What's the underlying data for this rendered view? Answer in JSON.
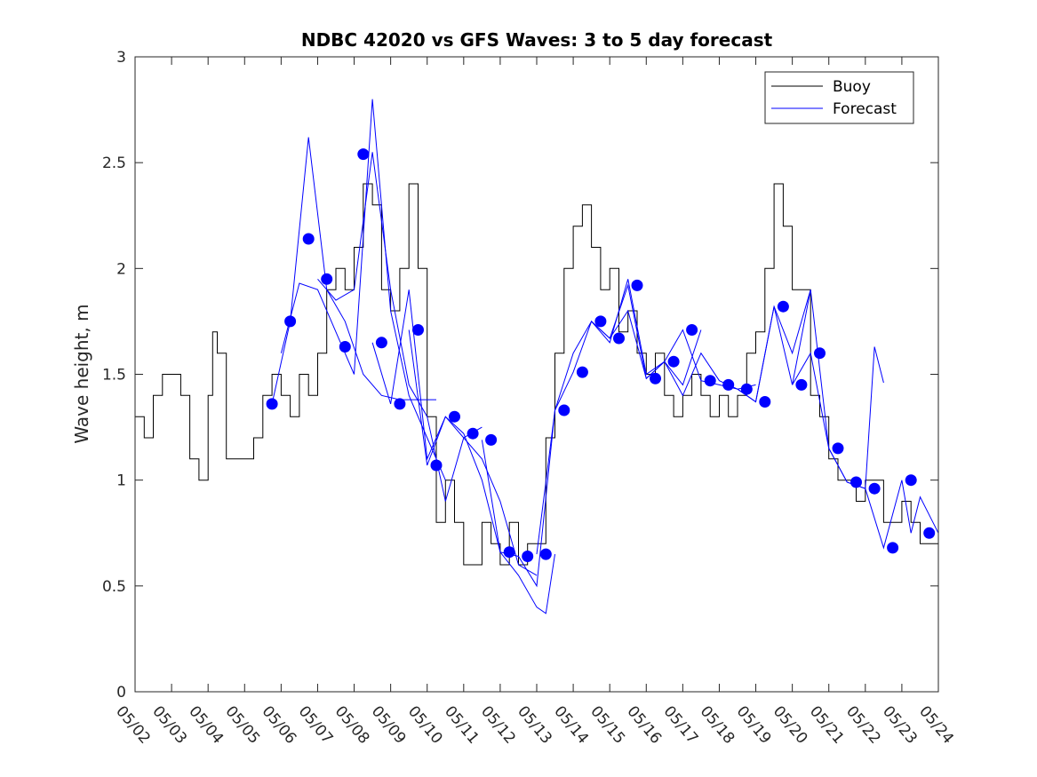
{
  "chart_data": {
    "type": "line",
    "title": "NDBC 42020 vs GFS Waves: 3 to 5 day forecast",
    "xlabel": "",
    "ylabel": "Wave height, m",
    "x_ticks": [
      "05/02",
      "05/03",
      "05/04",
      "05/05",
      "05/06",
      "05/07",
      "05/08",
      "05/09",
      "05/10",
      "05/11",
      "05/12",
      "05/13",
      "05/14",
      "05/15",
      "05/16",
      "05/17",
      "05/18",
      "05/19",
      "05/20",
      "05/21",
      "05/22",
      "05/23",
      "05/24"
    ],
    "xlim": [
      "05/02",
      "05/24"
    ],
    "ylim": [
      0,
      3
    ],
    "y_ticks": [
      "0",
      "0.5",
      "1",
      "1.5",
      "2",
      "2.5",
      "3"
    ],
    "legend_position": "top-right",
    "grid": false,
    "colors": {
      "buoy": "#000000",
      "forecast": "#0000ff",
      "axes": "#262626"
    },
    "series": [
      {
        "name": "Buoy",
        "style": "line",
        "x": [
          "05/02 00:00",
          "05/02 06:00",
          "05/02 12:00",
          "05/02 18:00",
          "05/03 00:00",
          "05/03 06:00",
          "05/03 12:00",
          "05/03 18:00",
          "05/04 00:00",
          "05/04 03:00",
          "05/04 06:00",
          "05/04 12:00",
          "05/04 18:00",
          "05/05 00:00",
          "05/05 06:00",
          "05/05 12:00",
          "05/05 18:00",
          "05/06 00:00",
          "05/06 06:00",
          "05/06 12:00",
          "05/06 18:00",
          "05/07 00:00",
          "05/07 06:00",
          "05/07 12:00",
          "05/07 18:00",
          "05/08 00:00",
          "05/08 06:00",
          "05/08 12:00",
          "05/08 18:00",
          "05/09 00:00",
          "05/09 06:00",
          "05/09 12:00",
          "05/09 18:00",
          "05/10 00:00",
          "05/10 06:00",
          "05/10 12:00",
          "05/10 18:00",
          "05/11 00:00",
          "05/11 06:00",
          "05/11 12:00",
          "05/11 18:00",
          "05/12 00:00",
          "05/12 06:00",
          "05/12 12:00",
          "05/12 18:00",
          "05/13 00:00",
          "05/13 06:00",
          "05/13 12:00",
          "05/13 18:00",
          "05/14 00:00",
          "05/14 06:00",
          "05/14 12:00",
          "05/14 18:00",
          "05/15 00:00",
          "05/15 06:00",
          "05/15 12:00",
          "05/15 18:00",
          "05/16 00:00",
          "05/16 06:00",
          "05/16 12:00",
          "05/16 18:00",
          "05/17 00:00",
          "05/17 06:00",
          "05/17 12:00",
          "05/17 18:00",
          "05/18 00:00",
          "05/18 06:00",
          "05/18 12:00",
          "05/18 18:00",
          "05/19 00:00",
          "05/19 06:00",
          "05/19 12:00",
          "05/19 18:00",
          "05/20 00:00",
          "05/20 06:00",
          "05/20 12:00",
          "05/20 18:00",
          "05/21 00:00",
          "05/21 06:00",
          "05/21 12:00",
          "05/21 18:00",
          "05/22 00:00",
          "05/22 06:00",
          "05/22 12:00",
          "05/22 18:00",
          "05/23 00:00",
          "05/23 06:00",
          "05/23 12:00",
          "05/23 18:00",
          "05/24 00:00"
        ],
        "y": [
          1.3,
          1.2,
          1.4,
          1.5,
          1.5,
          1.4,
          1.1,
          1.0,
          1.4,
          1.7,
          1.6,
          1.1,
          1.1,
          1.1,
          1.2,
          1.4,
          1.5,
          1.4,
          1.3,
          1.5,
          1.4,
          1.6,
          1.9,
          2.0,
          1.9,
          2.1,
          2.4,
          2.3,
          1.9,
          1.8,
          2.0,
          2.4,
          2.0,
          1.3,
          0.8,
          1.0,
          0.8,
          0.6,
          0.6,
          0.8,
          0.7,
          0.6,
          0.8,
          0.6,
          0.7,
          0.7,
          1.2,
          1.6,
          2.0,
          2.2,
          2.3,
          2.1,
          1.9,
          2.0,
          1.7,
          1.8,
          1.6,
          1.5,
          1.6,
          1.4,
          1.3,
          1.4,
          1.5,
          1.4,
          1.3,
          1.4,
          1.3,
          1.4,
          1.6,
          1.7,
          2.0,
          2.4,
          2.2,
          1.9,
          1.9,
          1.4,
          1.3,
          1.1,
          1.0,
          1.0,
          0.9,
          1.0,
          1.0,
          0.8,
          0.8,
          0.9,
          0.8,
          0.7,
          0.7,
          0.7
        ]
      },
      {
        "name": "Forecast",
        "style": "line",
        "runs": [
          {
            "x": [
              "05/05 18:00",
              "05/06 06:00",
              "05/06 18:00",
              "05/07 06:00",
              "05/07 18:00",
              "05/08 06:00",
              "05/08 18:00",
              "05/09 06:00",
              "05/09 18:00",
              "05/10 06:00"
            ],
            "y": [
              1.36,
              1.75,
              2.62,
              1.9,
              1.75,
              1.5,
              1.4,
              1.38,
              1.38,
              1.38
            ]
          },
          {
            "x": [
              "05/06 00:00",
              "05/06 12:00",
              "05/07 00:00",
              "05/07 12:00",
              "05/08 00:00",
              "05/08 12:00",
              "05/09 00:00",
              "05/09 12:00",
              "05/10 00:00",
              "05/10 12:00"
            ],
            "y": [
              1.6,
              1.93,
              1.9,
              1.7,
              1.5,
              2.8,
              1.8,
              1.4,
              1.2,
              1.0
            ]
          },
          {
            "x": [
              "05/07 00:00",
              "05/07 12:00",
              "05/08 00:00",
              "05/08 12:00",
              "05/09 00:00",
              "05/09 12:00",
              "05/10 00:00",
              "05/10 12:00",
              "05/11 00:00",
              "05/11 12:00"
            ],
            "y": [
              1.95,
              1.85,
              1.9,
              2.55,
              1.9,
              1.45,
              1.3,
              0.9,
              1.2,
              1.25
            ]
          },
          {
            "x": [
              "05/08 12:00",
              "05/09 00:00",
              "05/09 12:00",
              "05/10 00:00",
              "05/10 12:00",
              "05/11 00:00",
              "05/11 12:00",
              "05/12 00:00",
              "05/12 12:00",
              "05/13 00:00"
            ],
            "y": [
              1.65,
              1.36,
              1.9,
              1.1,
              1.3,
              1.2,
              1.1,
              0.9,
              0.6,
              0.55
            ]
          },
          {
            "x": [
              "05/09 12:00",
              "05/10 00:00",
              "05/10 12:00",
              "05/11 00:00",
              "05/11 12:00",
              "05/12 00:00",
              "05/12 12:00",
              "05/13 00:00",
              "05/13 06:00",
              "05/13 12:00"
            ],
            "y": [
              1.71,
              1.07,
              1.3,
              1.22,
              1.0,
              0.66,
              0.55,
              0.4,
              0.37,
              0.65
            ]
          },
          {
            "x": [
              "05/11 12:00",
              "05/12 00:00",
              "05/12 12:00",
              "05/13 00:00",
              "05/13 12:00",
              "05/14 00:00",
              "05/14 12:00",
              "05/15 00:00",
              "05/15 12:00",
              "05/16 00:00"
            ],
            "y": [
              1.19,
              0.66,
              0.64,
              0.5,
              1.33,
              1.51,
              1.75,
              1.67,
              1.92,
              1.48
            ]
          },
          {
            "x": [
              "05/13 00:00",
              "05/13 12:00",
              "05/14 00:00",
              "05/14 12:00",
              "05/15 00:00",
              "05/15 12:00",
              "05/16 00:00",
              "05/16 12:00",
              "05/17 00:00",
              "05/17 12:00"
            ],
            "y": [
              0.65,
              1.33,
              1.6,
              1.75,
              1.65,
              1.95,
              1.5,
              1.56,
              1.45,
              1.71
            ]
          },
          {
            "x": [
              "05/14 12:00",
              "05/15 00:00",
              "05/15 12:00",
              "05/16 00:00",
              "05/16 12:00",
              "05/17 00:00",
              "05/17 12:00",
              "05/18 00:00",
              "05/18 12:00",
              "05/19 00:00"
            ],
            "y": [
              1.75,
              1.67,
              1.8,
              1.48,
              1.56,
              1.4,
              1.6,
              1.47,
              1.43,
              1.45
            ]
          },
          {
            "x": [
              "05/16 00:00",
              "05/16 12:00",
              "05/17 00:00",
              "05/17 12:00",
              "05/18 00:00",
              "05/18 12:00",
              "05/19 00:00",
              "05/19 12:00",
              "05/20 00:00",
              "05/20 12:00"
            ],
            "y": [
              1.48,
              1.56,
              1.71,
              1.47,
              1.45,
              1.43,
              1.37,
              1.82,
              1.6,
              1.9
            ]
          },
          {
            "x": [
              "05/18 12:00",
              "05/19 00:00",
              "05/19 12:00",
              "05/20 00:00",
              "05/20 12:00",
              "05/21 00:00",
              "05/21 12:00",
              "05/22 00:00",
              "05/22 06:00",
              "05/22 12:00"
            ],
            "y": [
              1.43,
              1.37,
              1.82,
              1.45,
              1.9,
              1.15,
              0.99,
              0.96,
              1.63,
              1.46
            ]
          },
          {
            "x": [
              "05/20 00:00",
              "05/20 12:00",
              "05/21 00:00",
              "05/21 12:00",
              "05/22 00:00",
              "05/22 12:00",
              "05/23 00:00",
              "05/23 06:00",
              "05/23 12:00",
              "05/24 00:00"
            ],
            "y": [
              1.45,
              1.6,
              1.15,
              0.99,
              0.96,
              0.68,
              1.0,
              0.75,
              0.92,
              0.75
            ]
          }
        ]
      },
      {
        "name": "",
        "style": "markers",
        "x": [
          "05/05 18:00",
          "05/06 06:00",
          "05/06 18:00",
          "05/07 06:00",
          "05/07 18:00",
          "05/08 06:00",
          "05/08 18:00",
          "05/09 06:00",
          "05/09 18:00",
          "05/10 06:00",
          "05/10 18:00",
          "05/11 06:00",
          "05/11 18:00",
          "05/12 06:00",
          "05/12 18:00",
          "05/13 06:00",
          "05/13 18:00",
          "05/14 06:00",
          "05/14 18:00",
          "05/15 06:00",
          "05/15 18:00",
          "05/16 06:00",
          "05/16 18:00",
          "05/17 06:00",
          "05/17 18:00",
          "05/18 06:00",
          "05/18 18:00",
          "05/19 06:00",
          "05/19 18:00",
          "05/20 06:00",
          "05/20 18:00",
          "05/21 06:00",
          "05/21 18:00",
          "05/22 06:00",
          "05/22 18:00",
          "05/23 06:00",
          "05/23 18:00"
        ],
        "y": [
          1.36,
          1.75,
          2.14,
          1.95,
          1.63,
          2.54,
          1.65,
          1.36,
          1.71,
          1.07,
          1.3,
          1.22,
          1.19,
          0.66,
          0.64,
          0.65,
          1.33,
          1.51,
          1.75,
          1.67,
          1.92,
          1.48,
          1.56,
          1.71,
          1.47,
          1.45,
          1.43,
          1.37,
          1.82,
          1.45,
          1.6,
          1.15,
          0.99,
          0.96,
          0.68,
          1.0,
          0.75
        ]
      }
    ]
  }
}
